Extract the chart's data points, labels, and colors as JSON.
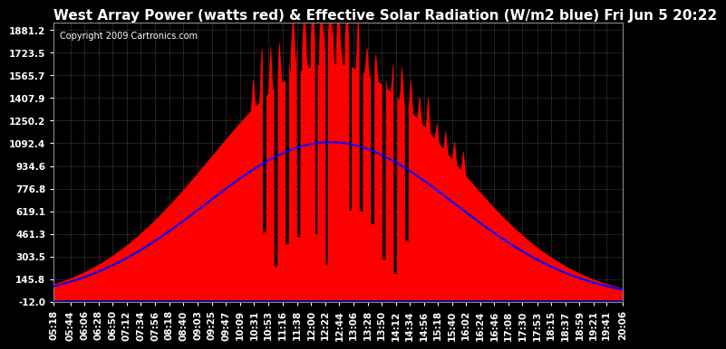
{
  "title": "West Array Power (watts red) & Effective Solar Radiation (W/m2 blue) Fri Jun 5 20:22",
  "copyright": "Copyright 2009 Cartronics.com",
  "bg_color": "#000000",
  "plot_bg_color": "#000000",
  "grid_color": "#888888",
  "text_color": "#ffffff",
  "red_color": "#ff0000",
  "blue_color": "#0000ff",
  "ymin": -12.0,
  "ymax": 1881.2,
  "yticks": [
    -12.0,
    145.8,
    303.5,
    461.3,
    619.1,
    776.8,
    934.6,
    1092.4,
    1250.2,
    1407.9,
    1565.7,
    1723.5,
    1881.2
  ],
  "xtick_labels": [
    "05:18",
    "05:44",
    "06:06",
    "06:28",
    "06:50",
    "07:12",
    "07:34",
    "07:56",
    "08:18",
    "08:40",
    "09:03",
    "09:25",
    "09:47",
    "10:09",
    "10:31",
    "10:53",
    "11:16",
    "11:38",
    "12:00",
    "12:22",
    "12:44",
    "13:06",
    "13:28",
    "13:50",
    "14:12",
    "14:34",
    "14:56",
    "15:18",
    "15:40",
    "16:02",
    "16:24",
    "16:46",
    "17:08",
    "17:30",
    "17:53",
    "18:15",
    "18:37",
    "18:59",
    "19:21",
    "19:41",
    "20:06"
  ],
  "n_points": 500,
  "title_fontsize": 11,
  "tick_fontsize": 7.5,
  "copyright_fontsize": 7
}
